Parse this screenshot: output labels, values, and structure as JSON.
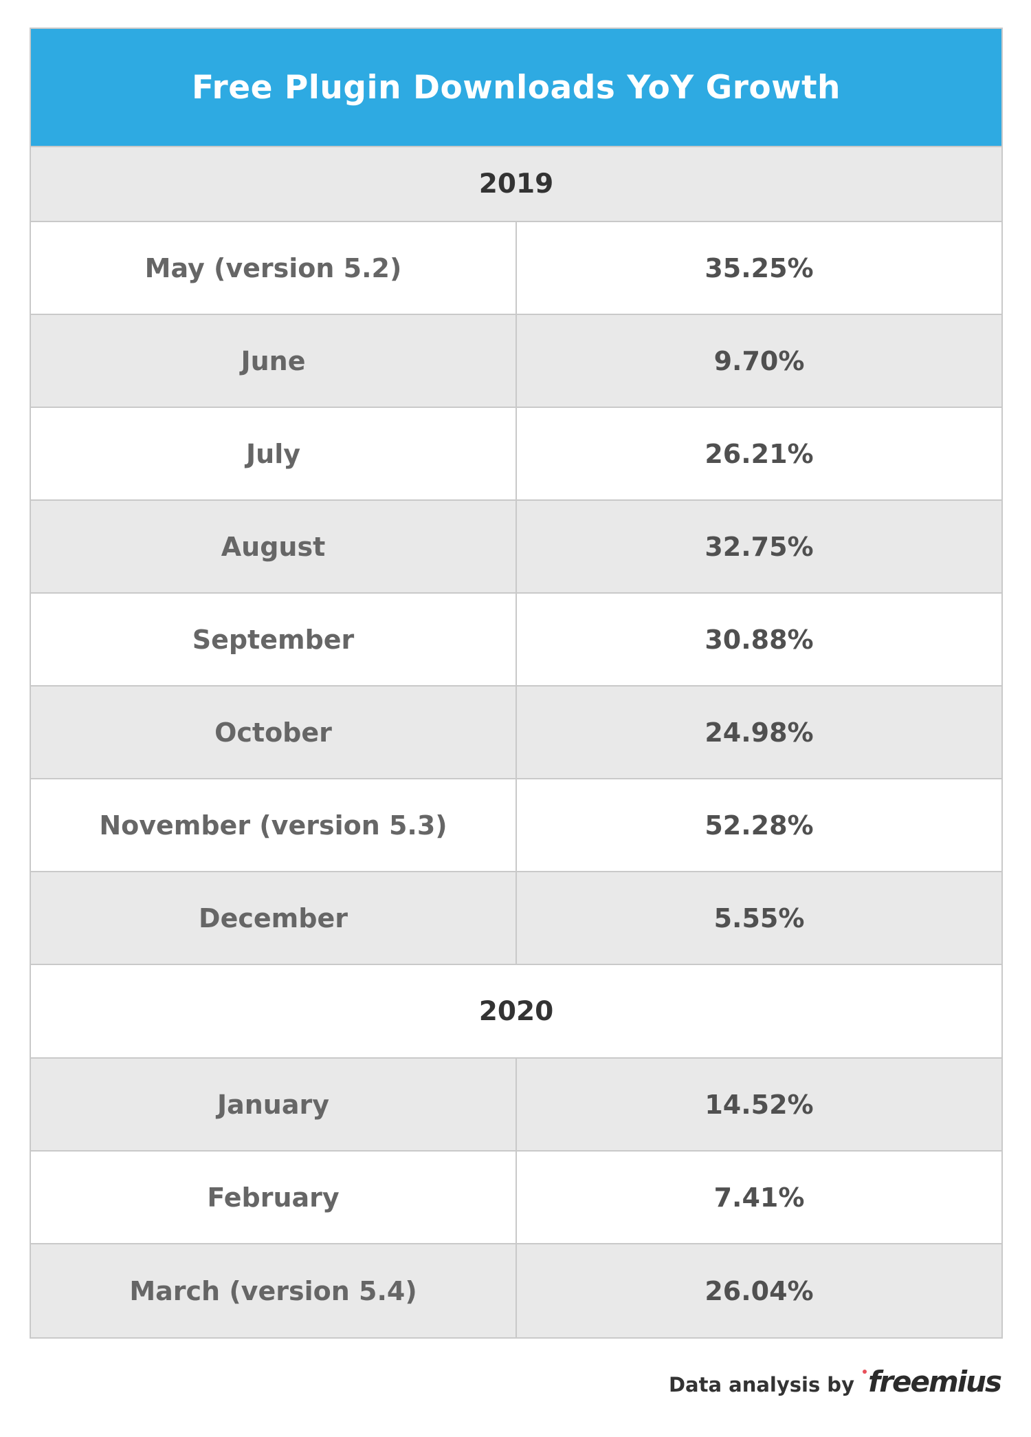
{
  "colors": {
    "header_bg": "#2eaae2",
    "row_alt_bg": "#e9e9e9",
    "row_bg": "#ffffff",
    "brand_dot": "#e8505b"
  },
  "chart_data": {
    "type": "table",
    "title": "Free Plugin Downloads YoY Growth",
    "groups": [
      {
        "year": "2019",
        "rows": [
          {
            "month": "May (version 5.2)",
            "growth": "35.25%"
          },
          {
            "month": "June",
            "growth": "9.70%"
          },
          {
            "month": "July",
            "growth": "26.21%"
          },
          {
            "month": "August",
            "growth": "32.75%"
          },
          {
            "month": "September",
            "growth": "30.88%"
          },
          {
            "month": "October",
            "growth": "24.98%"
          },
          {
            "month": "November (version 5.3)",
            "growth": "52.28%"
          },
          {
            "month": "December",
            "growth": "5.55%"
          }
        ]
      },
      {
        "year": "2020",
        "rows": [
          {
            "month": "January",
            "growth": "14.52%"
          },
          {
            "month": "February",
            "growth": "7.41%"
          },
          {
            "month": "March (version 5.4)",
            "growth": "26.04%"
          }
        ]
      }
    ]
  },
  "footer": {
    "text": "Data analysis by",
    "brand": "freemius"
  }
}
